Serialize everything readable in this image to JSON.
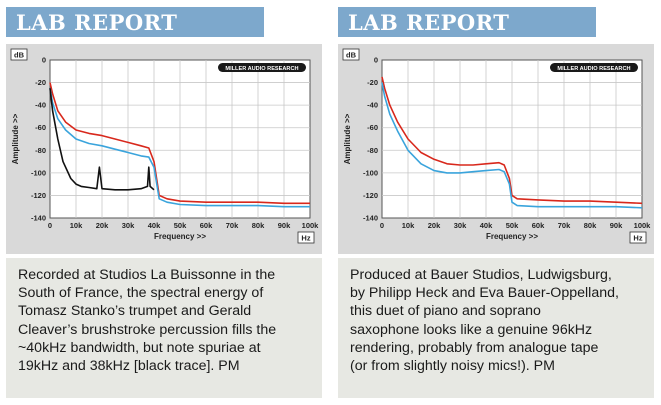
{
  "panels": [
    {
      "header": "LAB REPORT",
      "caption_lines": [
        "Recorded at Studios La Buissonne in the",
        "South of France, the spectral energy of",
        "Tomasz Stanko’s trumpet and Gerald",
        "Cleaver’s brushstroke percussion fills the",
        "~40kHz bandwidth, but note spuriae at",
        "19kHz and 38kHz [black trace]. PM"
      ]
    },
    {
      "header": "LAB REPORT",
      "caption_lines": [
        "Produced at Bauer Studios, Ludwigsburg,",
        "by Philipp Heck and Eva Bauer-Oppelland,",
        "this duet of piano and soprano",
        "saxophone looks like a genuine 96kHz",
        "rendering, probably from analogue tape",
        "(or from slightly noisy mics!).  PM"
      ]
    }
  ],
  "chart_data": [
    {
      "type": "line",
      "logo": "MILLER AUDIO RESEARCH",
      "ylabel": "Amplitude >>",
      "xlabel": "Frequency >>",
      "y_unit": "dB",
      "x_unit": "Hz",
      "xlim": [
        0,
        100000
      ],
      "ylim": [
        -140,
        0
      ],
      "x_ticks": [
        "0",
        "10k",
        "20k",
        "30k",
        "40k",
        "50k",
        "60k",
        "70k",
        "80k",
        "90k",
        "100k"
      ],
      "y_ticks": [
        "0",
        "-20",
        "-40",
        "-60",
        "-80",
        "-100",
        "-120",
        "-140"
      ],
      "grid": true,
      "series": [
        {
          "color": "#d8281c",
          "x": [
            0,
            1000,
            3000,
            6000,
            10000,
            15000,
            20000,
            25000,
            30000,
            35000,
            38000,
            40000,
            42000,
            45000,
            50000,
            60000,
            70000,
            80000,
            90000,
            100000
          ],
          "y": [
            -20,
            -30,
            -45,
            -55,
            -62,
            -65,
            -67,
            -70,
            -73,
            -76,
            -78,
            -90,
            -120,
            -123,
            -125,
            -126,
            -126,
            -126,
            -127,
            -127
          ]
        },
        {
          "color": "#3aa4dc",
          "x": [
            0,
            1000,
            3000,
            6000,
            10000,
            15000,
            20000,
            25000,
            30000,
            35000,
            38000,
            40000,
            42000,
            45000,
            50000,
            60000,
            70000,
            80000,
            90000,
            100000
          ],
          "y": [
            -25,
            -38,
            -52,
            -62,
            -70,
            -74,
            -76,
            -79,
            -82,
            -85,
            -86,
            -95,
            -123,
            -126,
            -128,
            -129,
            -129,
            -129,
            -130,
            -130
          ]
        },
        {
          "color": "#111111",
          "x": [
            0,
            1000,
            3000,
            5000,
            8000,
            10000,
            12000,
            15000,
            18000,
            19000,
            20000,
            25000,
            30000,
            35000,
            37500,
            38000,
            38500,
            40000
          ],
          "y": [
            -25,
            -45,
            -70,
            -90,
            -105,
            -110,
            -112,
            -113,
            -114,
            -95,
            -114,
            -115,
            -115,
            -114,
            -112,
            -95,
            -112,
            -115
          ]
        }
      ]
    },
    {
      "type": "line",
      "logo": "MILLER AUDIO RESEARCH",
      "ylabel": "Amplitude >>",
      "xlabel": "Frequency >>",
      "y_unit": "dB",
      "x_unit": "Hz",
      "xlim": [
        0,
        100000
      ],
      "ylim": [
        -140,
        0
      ],
      "x_ticks": [
        "0",
        "10k",
        "20k",
        "30k",
        "40k",
        "50k",
        "60k",
        "70k",
        "80k",
        "90k",
        "100k"
      ],
      "y_ticks": [
        "0",
        "-20",
        "-40",
        "-60",
        "-80",
        "-100",
        "-120",
        "-140"
      ],
      "grid": true,
      "series": [
        {
          "color": "#d8281c",
          "x": [
            0,
            1000,
            3000,
            6000,
            10000,
            15000,
            20000,
            25000,
            30000,
            35000,
            40000,
            45000,
            47000,
            49000,
            50000,
            52000,
            60000,
            70000,
            80000,
            90000,
            100000
          ],
          "y": [
            -15,
            -25,
            -40,
            -55,
            -70,
            -82,
            -88,
            -92,
            -93,
            -93,
            -92,
            -91,
            -93,
            -105,
            -120,
            -123,
            -124,
            -125,
            -125,
            -126,
            -127
          ]
        },
        {
          "color": "#3aa4dc",
          "x": [
            0,
            1000,
            3000,
            6000,
            10000,
            15000,
            20000,
            25000,
            30000,
            35000,
            40000,
            45000,
            47000,
            49000,
            50000,
            52000,
            60000,
            70000,
            80000,
            90000,
            100000
          ],
          "y": [
            -20,
            -32,
            -48,
            -63,
            -80,
            -92,
            -98,
            -100,
            -100,
            -99,
            -98,
            -97,
            -99,
            -110,
            -126,
            -129,
            -130,
            -130,
            -130,
            -130,
            -131
          ]
        }
      ]
    }
  ]
}
